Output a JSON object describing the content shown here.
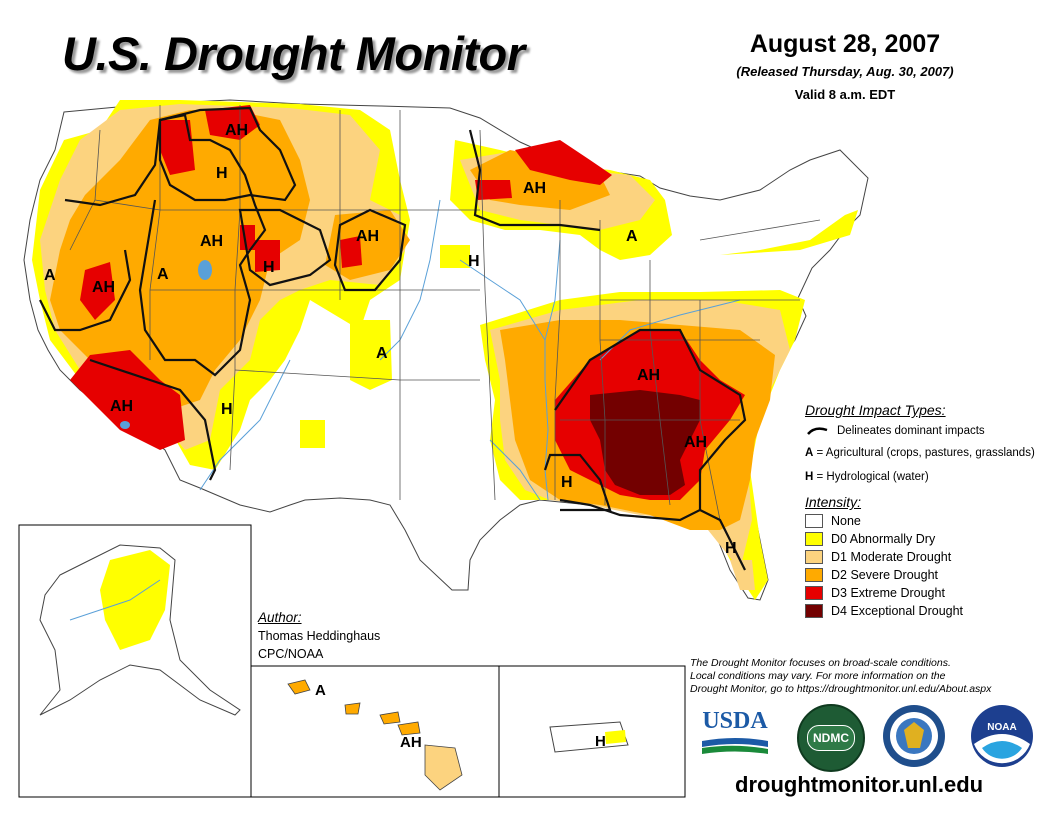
{
  "header": {
    "title": "U.S. Drought Monitor",
    "date": "August 28, 2007",
    "released": "(Released Thursday, Aug. 30, 2007)",
    "valid": "Valid 8 a.m. EDT"
  },
  "map_labels": {
    "ah_montana": "AH",
    "h_idaho": "H",
    "ah_idaho": "AH",
    "h_wyoming": "H",
    "ah_sd": "AH",
    "h_nebraska": "H",
    "a_california": "A",
    "ah_nevada": "AH",
    "a_utah": "A",
    "ah_socal": "AH",
    "h_arizona": "H",
    "a_colorado": "A",
    "ah_wisconsin": "AH",
    "a_michigan": "A",
    "ah_tennessee": "AH",
    "ah_georgia": "AH",
    "h_louisiana": "H",
    "h_florida": "H",
    "a_hawaii": "A",
    "ah_hawaii": "AH",
    "h_puerto_rico": "H"
  },
  "legend": {
    "impact_title": "Drought Impact Types:",
    "delineates": "Delineates dominant impacts",
    "ag_key": "A",
    "ag_text": " = Agricultural (crops, pastures, grasslands)",
    "hy_key": "H",
    "hy_text": " = Hydrological (water)",
    "intensity_title": "Intensity:",
    "levels": [
      {
        "label": "None",
        "color": "#ffffff"
      },
      {
        "label": "D0 Abnormally Dry",
        "color": "#ffff00"
      },
      {
        "label": "D1 Moderate Drought",
        "color": "#fcd37f"
      },
      {
        "label": "D2 Severe Drought",
        "color": "#ffaa00"
      },
      {
        "label": "D3 Extreme Drought",
        "color": "#e60000"
      },
      {
        "label": "D4 Exceptional Drought",
        "color": "#730000"
      }
    ]
  },
  "author": {
    "heading": "Author:",
    "name": "Thomas Heddinghaus",
    "org": "CPC/NOAA"
  },
  "disclaimer": {
    "line1": "The Drought Monitor focuses on broad-scale conditions.",
    "line2": "Local conditions may vary. For more information on the",
    "line3": "Drought Monitor, go to https://droughtmonitor.unl.edu/About.aspx"
  },
  "logos": {
    "usda": "USDA",
    "ndmc": "NDMC",
    "noaa": "NOAA"
  },
  "footer": {
    "url": "droughtmonitor.unl.edu"
  },
  "colors": {
    "d0": "#ffff00",
    "d1": "#fcd37f",
    "d2": "#ffaa00",
    "d3": "#e60000",
    "d4": "#730000",
    "water": "#5aa0d8"
  }
}
